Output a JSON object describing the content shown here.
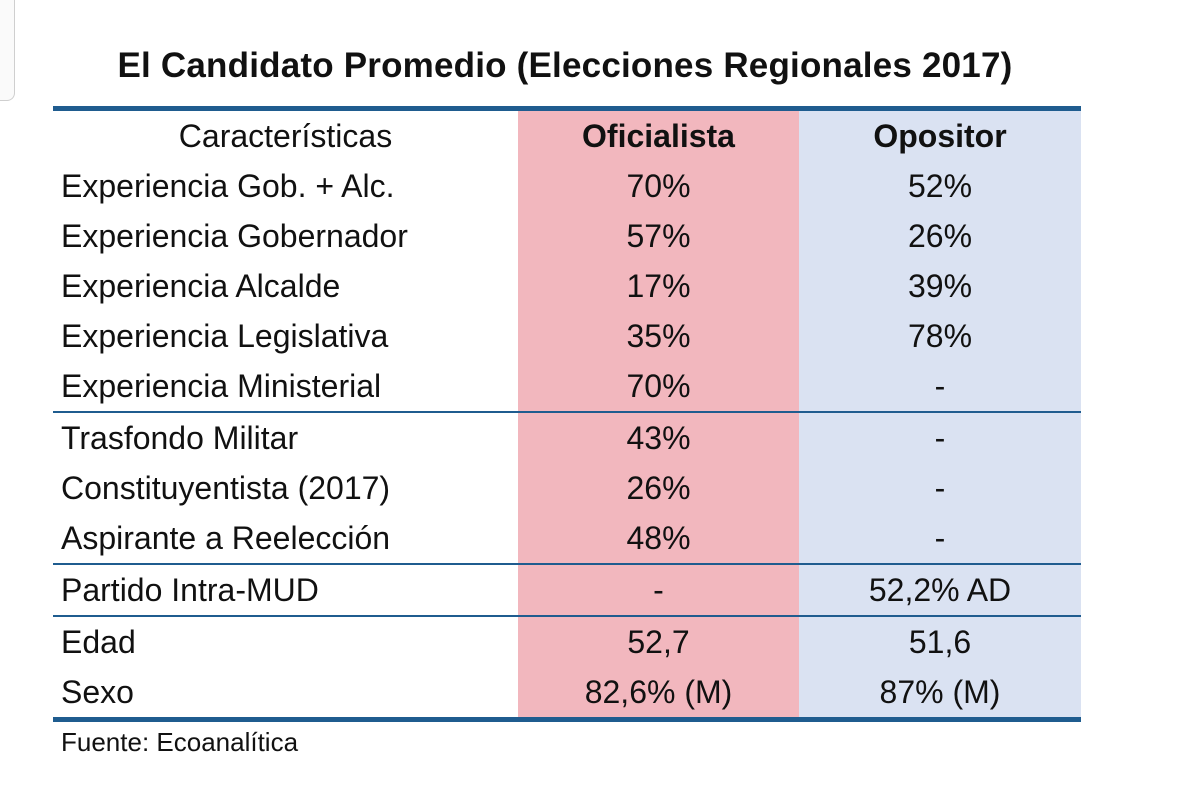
{
  "title": "El Candidato Promedio (Elecciones Regionales 2017)",
  "header": {
    "characteristics": "Características",
    "oficialista": "Oficialista",
    "opositor": "Opositor"
  },
  "groups": [
    [
      {
        "label": "Experiencia Gob. + Alc.",
        "oficialista": "70%",
        "opositor": "52%"
      },
      {
        "label": "Experiencia Gobernador",
        "oficialista": "57%",
        "opositor": "26%"
      },
      {
        "label": "Experiencia Alcalde",
        "oficialista": "17%",
        "opositor": "39%"
      },
      {
        "label": "Experiencia Legislativa",
        "oficialista": "35%",
        "opositor": "78%"
      },
      {
        "label": "Experiencia Ministerial",
        "oficialista": "70%",
        "opositor": "-"
      }
    ],
    [
      {
        "label": "Trasfondo Militar",
        "oficialista": "43%",
        "opositor": "-"
      },
      {
        "label": "Constituyentista (2017)",
        "oficialista": "26%",
        "opositor": "-"
      },
      {
        "label": "Aspirante a Reelección",
        "oficialista": "48%",
        "opositor": "-"
      }
    ],
    [
      {
        "label": "Partido Intra-MUD",
        "oficialista": "-",
        "opositor": "52,2% AD"
      }
    ],
    [
      {
        "label": "Edad",
        "oficialista": "52,7",
        "opositor": "51,6"
      },
      {
        "label": "Sexo",
        "oficialista": "82,6% (M)",
        "opositor": "87% (M)"
      }
    ]
  ],
  "source": "Fuente: Ecoanalítica",
  "colors": {
    "rule": "#1f5c8f",
    "oficialista_bg": "#f2b7be",
    "opositor_bg": "#dae2f2"
  }
}
